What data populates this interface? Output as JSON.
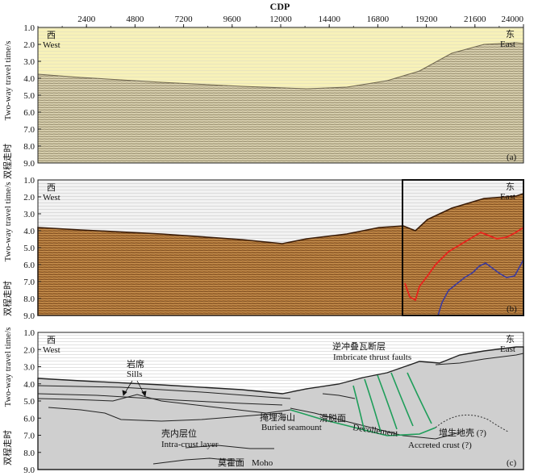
{
  "figure": {
    "top_axis_label": "CDP",
    "cdp_ticks": [
      "2400",
      "4800",
      "7200",
      "9600",
      "12000",
      "14400",
      "16800",
      "19200",
      "21600",
      "24000"
    ],
    "time_ticks": [
      "1.0",
      "2.0",
      "3.0",
      "4.0",
      "5.0",
      "6.0",
      "7.0",
      "8.0",
      "9.0"
    ],
    "y_label_cn": "双程走时",
    "y_label_en": "Two-way travel time/s",
    "west_cn": "西",
    "west_en": "West",
    "east_cn": "东",
    "east_en": "East"
  },
  "panels": [
    {
      "id": "a",
      "tag": "(a)",
      "style": "seismic-raw"
    },
    {
      "id": "b",
      "tag": "(b)",
      "style": "seismic-color"
    },
    {
      "id": "c",
      "tag": "(c)",
      "style": "interpretation"
    }
  ],
  "annotations": {
    "sills_cn": "岩席",
    "sills_en": "Sills",
    "thrust_cn": "逆冲叠瓦断层",
    "thrust_en": "Imbricate thrust faults",
    "seamount_cn": "掩埋海山",
    "seamount_en": "Buried seamount",
    "decollement_cn": "滑脱面",
    "decollement_en": "Decollement",
    "accreted_cn": "增生地壳 (?)",
    "accreted_en": "Accreted crust (?)",
    "intra_cn": "壳内层位",
    "intra_en": "Intra-crust layer",
    "moho_cn": "莫霍面",
    "moho_en": "Moho"
  },
  "colors": {
    "water_a": "#f7f1b8",
    "sediment_a": "#c9bf9a",
    "water_b": "#f2f2f2",
    "sediment_b": "#b47a3a",
    "crust_c": "#cfcfcf",
    "red_horizon": "#e8231c",
    "blue_horizon": "#3a3aa0",
    "thrust_green": "#1f9e5a"
  }
}
